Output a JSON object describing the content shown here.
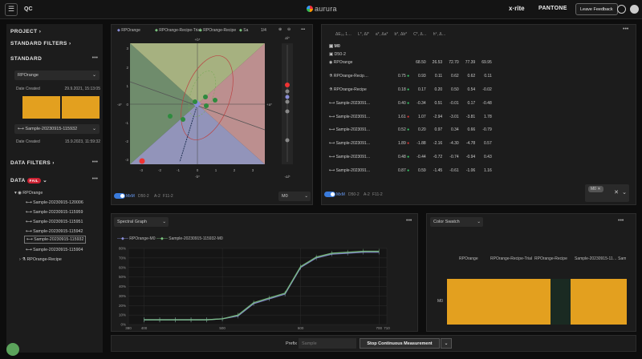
{
  "app": {
    "title": "QC",
    "brand": "aurura",
    "xrite": "x·rite",
    "pantone": "PANTONE",
    "feedback_label": "Leave Feedback"
  },
  "sidebar": {
    "project_label": "PROJECT",
    "standard_filters_label": "STANDARD FILTERS",
    "standard_label": "STANDARD",
    "standard_select": "RPOrange",
    "date_created_label": "Date Created",
    "date_created_value": "29.9.2021, 15:13:05",
    "sample_select": "Sample-20230915-115932",
    "sample_date_label": "Date Created",
    "sample_date_value": "15.9.2023, 11:59:32",
    "data_filters_label": "DATA FILTERS",
    "data_label": "DATA",
    "data_badge": "FAIL",
    "tree": {
      "root": "RPOrange",
      "samples": [
        "Sample-20230915-120006",
        "Sample-20230915-115959",
        "Sample-20230915-115951",
        "Sample-20230915-115942",
        "Sample-20230915-115932",
        "Sample-20230915-115904"
      ],
      "recipe": "RPOrange-Recipe"
    },
    "colors": {
      "swatch": "#e3a01f"
    }
  },
  "plot_panel": {
    "legend": [
      "RPOrange",
      "RPOrange-Recipe-Trial",
      "RPOrange-Recipe",
      "Sa"
    ],
    "legend_more": "1/4",
    "axis": {
      "top": "+b*",
      "bottom": "-b*",
      "left": "-a*",
      "right": "+a*",
      "side_top": "Δl*",
      "side_bottom": "-Δl*"
    },
    "xticks": [
      "-3",
      "-2",
      "-1",
      "0",
      "1",
      "2",
      "3"
    ],
    "yticks": [
      "3",
      "2",
      "1",
      "0",
      "-1",
      "-2",
      "-3"
    ],
    "toggle_label": "MxM",
    "pills": [
      "D50-2",
      "A-2",
      "F11-2"
    ],
    "illuminant_select": "M0"
  },
  "table_panel": {
    "columns": [
      "ΔE₀₀ 1…",
      "L*, Δl*",
      "a*, Δa*",
      "b*, Δb*",
      "C*, Δ…",
      "h°, Δ…"
    ],
    "group": "M0",
    "illuminant": "D50-2",
    "rows": [
      {
        "name": "RPOrange",
        "values": [
          "",
          "68.50",
          "26.53",
          "72.70",
          "77.39",
          "69.95"
        ],
        "flag": ""
      },
      {
        "name": "RPOrange-Recip…",
        "values": [
          "0.75",
          "0.93",
          "0.11",
          "0.62",
          "0.62",
          "0.11"
        ],
        "flag": "up"
      },
      {
        "name": "RPOrange-Recipe",
        "values": [
          "0.18",
          "0.17",
          "0.20",
          "0.50",
          "0.54",
          "-0.02"
        ],
        "flag": "up"
      },
      {
        "name": "Sample-2023091…",
        "values": [
          "0.40",
          "-0.34",
          "0.51",
          "-0.01",
          "0.17",
          "-0.48"
        ],
        "flag": "up"
      },
      {
        "name": "Sample-2023091…",
        "values": [
          "1.61",
          "1.07",
          "-2.94",
          "-3.01",
          "-3.81",
          "1.78"
        ],
        "flag": "dn"
      },
      {
        "name": "Sample-2023091…",
        "values": [
          "0.52",
          "0.20",
          "0.97",
          "0.34",
          "0.66",
          "-0.79"
        ],
        "flag": "up"
      },
      {
        "name": "Sample-2023091…",
        "values": [
          "1.89",
          "-1.88",
          "-2.16",
          "-4.30",
          "-4.78",
          "0.57"
        ],
        "flag": "dn"
      },
      {
        "name": "Sample-2023091…",
        "values": [
          "0.48",
          "-0.44",
          "-0.72",
          "-0.74",
          "-0.94",
          "0.43"
        ],
        "flag": "up"
      },
      {
        "name": "Sample-2023091…",
        "values": [
          "0.87",
          "0.59",
          "-1.45",
          "-0.61",
          "-1.06",
          "1.16"
        ],
        "flag": "up"
      }
    ],
    "toggle_label": "MxM",
    "pills": [
      "D50-2",
      "A-2",
      "F11-2"
    ],
    "chip": "M0"
  },
  "spectral": {
    "title_select": "Spectral Graph",
    "legend": [
      "RPOrange-M0",
      "Sample-20230915-115932-M0"
    ],
    "chart_data": {
      "type": "line",
      "title": "",
      "x": [
        400,
        420,
        440,
        460,
        480,
        500,
        520,
        540,
        560,
        580,
        600,
        620,
        640,
        660,
        680,
        700
      ],
      "series": [
        {
          "name": "RPOrange-M0",
          "values": [
            5,
            5,
            5,
            5,
            5,
            6,
            9,
            22,
            27,
            32,
            60,
            70,
            74,
            75,
            76,
            76
          ]
        },
        {
          "name": "Sample-20230915-115932-M0",
          "values": [
            5,
            5,
            5,
            5,
            5,
            6,
            10,
            23,
            28,
            33,
            61,
            71,
            75,
            76,
            77,
            77
          ]
        }
      ],
      "xticks": [
        "380",
        "400",
        "500",
        "600",
        "700",
        "710"
      ],
      "yticks": [
        "80%",
        "70%",
        "60%",
        "50%",
        "40%",
        "30%",
        "20%",
        "10%",
        "0%"
      ],
      "ylim": [
        0,
        80
      ],
      "grid": true
    },
    "colors": {
      "line1": "#8b8fd9",
      "line2": "#7bc47f"
    }
  },
  "swatch_panel": {
    "title_select": "Color Swatch",
    "columns": [
      "RPOrange",
      "RPOrange-Recipe-Trial",
      "RPOrange-Recipe",
      "Sample-20230915-11… Sample"
    ],
    "row_label": "M0",
    "colors": {
      "orange": "#e3a01f",
      "dark": "#1a2a22"
    }
  },
  "bottom": {
    "prefix_label": "Prefix",
    "prefix_placeholder": "Sample",
    "measure_label": "Stop Continuous Measurement"
  }
}
